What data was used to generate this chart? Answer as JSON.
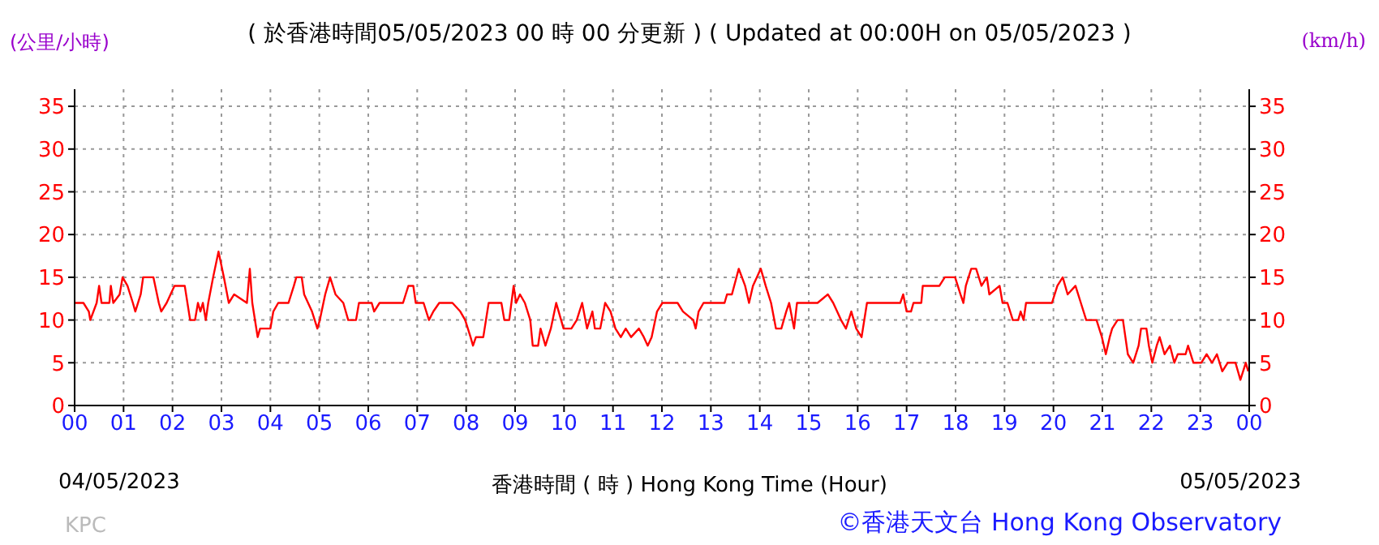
{
  "chart_data": {
    "type": "line",
    "title": "( 於香港時間05/05/2023 00 時 00 分更新 ) ( Updated at 00:00H on 05/05/2023 )",
    "xlabel": "香港時間 ( 時 )  Hong Kong Time (Hour)",
    "ylabel": "(公里/小時)",
    "y2label": "(km/h)",
    "annotations": [
      "04/05/2023",
      "05/05/2023",
      "KPC",
      "©香港天文台 Hong Kong Observatory"
    ],
    "xlim": [
      0,
      24
    ],
    "xticks": [
      {
        "value": 0,
        "label": "00"
      },
      {
        "value": 1,
        "label": "01"
      },
      {
        "value": 2,
        "label": "02"
      },
      {
        "value": 3,
        "label": "03"
      },
      {
        "value": 4,
        "label": "04"
      },
      {
        "value": 5,
        "label": "05"
      },
      {
        "value": 6,
        "label": "06"
      },
      {
        "value": 7,
        "label": "07"
      },
      {
        "value": 8,
        "label": "08"
      },
      {
        "value": 9,
        "label": "09"
      },
      {
        "value": 10,
        "label": "10"
      },
      {
        "value": 11,
        "label": "11"
      },
      {
        "value": 12,
        "label": "12"
      },
      {
        "value": 13,
        "label": "13"
      },
      {
        "value": 14,
        "label": "14"
      },
      {
        "value": 15,
        "label": "15"
      },
      {
        "value": 16,
        "label": "16"
      },
      {
        "value": 17,
        "label": "17"
      },
      {
        "value": 18,
        "label": "18"
      },
      {
        "value": 19,
        "label": "19"
      },
      {
        "value": 20,
        "label": "20"
      },
      {
        "value": 21,
        "label": "21"
      },
      {
        "value": 22,
        "label": "22"
      },
      {
        "value": 23,
        "label": "23"
      },
      {
        "value": 24,
        "label": "00"
      }
    ],
    "ylim": [
      0,
      37
    ],
    "yticks": [
      0,
      5,
      10,
      15,
      20,
      25,
      30,
      35
    ],
    "y2lim": [
      0,
      37
    ],
    "y2ticks": [
      0,
      5,
      10,
      15,
      20,
      25,
      30,
      35
    ],
    "grid": true,
    "marker": "none",
    "line_style": "solid",
    "series": [
      {
        "color": "#ff0000",
        "x": [
          0,
          0.18,
          0.29,
          0.32,
          0.45,
          0.5,
          0.55,
          0.71,
          0.74,
          0.79,
          0.92,
          0.98,
          1.08,
          1.19,
          1.24,
          1.35,
          1.4,
          1.61,
          1.72,
          1.77,
          1.88,
          1.96,
          2.04,
          2.25,
          2.36,
          2.46,
          2.52,
          2.57,
          2.62,
          2.68,
          2.73,
          2.83,
          2.94,
          3.05,
          3.15,
          3.26,
          3.52,
          3.58,
          3.63,
          3.74,
          3.79,
          4.0,
          4.06,
          4.16,
          4.37,
          4.48,
          4.53,
          4.64,
          4.69,
          4.85,
          4.96,
          5.01,
          5.12,
          5.22,
          5.33,
          5.49,
          5.59,
          5.75,
          5.81,
          6.07,
          6.12,
          6.23,
          6.71,
          6.82,
          6.92,
          6.97,
          7.13,
          7.24,
          7.33,
          7.45,
          7.72,
          7.88,
          7.98,
          8.09,
          8.14,
          8.2,
          8.35,
          8.46,
          8.72,
          8.78,
          8.88,
          8.97,
          9.02,
          9.1,
          9.2,
          9.31,
          9.36,
          9.47,
          9.52,
          9.62,
          9.73,
          9.84,
          9.89,
          9.99,
          10.15,
          10.26,
          10.37,
          10.47,
          10.58,
          10.63,
          10.74,
          10.84,
          10.95,
          11.05,
          11.16,
          11.26,
          11.37,
          11.53,
          11.63,
          11.71,
          11.79,
          11.9,
          12.01,
          12.32,
          12.43,
          12.64,
          12.69,
          12.75,
          12.85,
          13.28,
          13.33,
          13.43,
          13.57,
          13.7,
          13.78,
          13.86,
          14.02,
          14.12,
          14.23,
          14.33,
          14.44,
          14.54,
          14.6,
          14.7,
          14.76,
          15.18,
          15.39,
          15.5,
          15.66,
          15.76,
          15.87,
          15.97,
          16.08,
          16.19,
          16.66,
          16.87,
          16.93,
          17,
          17.09,
          17.14,
          17.3,
          17.33,
          17.67,
          17.78,
          17.99,
          18.1,
          18.16,
          18.21,
          18.32,
          18.42,
          18.53,
          18.64,
          18.69,
          18.9,
          18.96,
          19.06,
          19.17,
          19.28,
          19.33,
          19.39,
          19.44,
          19.97,
          20.08,
          20.19,
          20.29,
          20.45,
          20.56,
          20.67,
          20.88,
          20.99,
          21.07,
          21.15,
          21.2,
          21.31,
          21.42,
          21.47,
          21.52,
          21.63,
          21.74,
          21.79,
          21.9,
          21.95,
          22.02,
          22.11,
          22.17,
          22.27,
          22.38,
          22.47,
          22.54,
          22.7,
          22.75,
          22.86,
          23.02,
          23.13,
          23.24,
          23.34,
          23.45,
          23.56,
          23.72,
          23.82,
          23.93,
          23.98
        ],
        "values": [
          12,
          12,
          11,
          10,
          12,
          14,
          12,
          12,
          14,
          12,
          13,
          15,
          14,
          12,
          11,
          13,
          15,
          15,
          12,
          11,
          12,
          13,
          14,
          14,
          10,
          10,
          12,
          11,
          12,
          10,
          12,
          15,
          18,
          15,
          12,
          13,
          12,
          16,
          12,
          8,
          9,
          9,
          11,
          12,
          12,
          14,
          15,
          15,
          13,
          11,
          9,
          10,
          13,
          15,
          13,
          12,
          10,
          10,
          12,
          12,
          11,
          12,
          12,
          14,
          14,
          12,
          12,
          10,
          11,
          12,
          12,
          11,
          10,
          8,
          7,
          8,
          8,
          12,
          12,
          10,
          10,
          14,
          12,
          13,
          12,
          10,
          7,
          7,
          9,
          7,
          9,
          12,
          11,
          9,
          9,
          10,
          12,
          9,
          11,
          9,
          9,
          12,
          11,
          9,
          8,
          9,
          8,
          9,
          8,
          7,
          8,
          11,
          12,
          12,
          11,
          10,
          9,
          11,
          12,
          12,
          13,
          13,
          16,
          14,
          12,
          14,
          16,
          14,
          12,
          9,
          9,
          11,
          12,
          9,
          12,
          12,
          13,
          12,
          10,
          9,
          11,
          9,
          8,
          12,
          12,
          12,
          13,
          11,
          11,
          12,
          12,
          14,
          14,
          15,
          15,
          13,
          12,
          14,
          16,
          16,
          14,
          15,
          13,
          14,
          12,
          12,
          10,
          10,
          11,
          10,
          12,
          12,
          14,
          15,
          13,
          14,
          12,
          10,
          10,
          8,
          6,
          8,
          9,
          10,
          10,
          8,
          6,
          5,
          7,
          9,
          9,
          7,
          5,
          7,
          8,
          6,
          7,
          5,
          6,
          6,
          7,
          5,
          5,
          6,
          5,
          6,
          4,
          5,
          5,
          3,
          5,
          4
        ]
      }
    ]
  }
}
